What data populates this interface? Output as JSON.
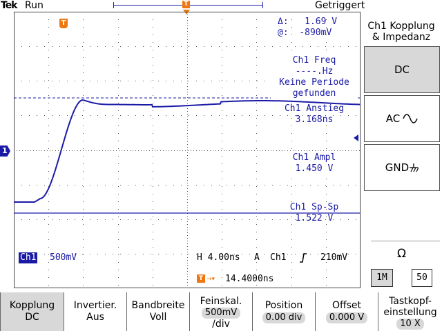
{
  "header": {
    "brand": "Tek",
    "run_state": "Run",
    "trigger_state": "Getriggert",
    "trigger_marker": "T",
    "trigger_level_marker": "T"
  },
  "cursor": {
    "delta_label": "Δ:",
    "delta_value": "1.69 V",
    "at_label": "@:",
    "at_value": "-890mV"
  },
  "measurements": [
    {
      "label": "Ch1 Freq",
      "value": "----.Hz",
      "extra": "Keine Periode",
      "extra2": "gefunden"
    },
    {
      "label": "Ch1 Anstieg",
      "value": "3.168ns"
    },
    {
      "label": "Ch1 Ampl",
      "value": "1.450 V"
    },
    {
      "label": "Ch1 Sp-Sp",
      "value": "1.522 V"
    }
  ],
  "channel": {
    "marker": "1",
    "badge": "Ch1",
    "scale": "500mV"
  },
  "timebase": {
    "horizontal": "H 4.00ns",
    "trigger_mode": "A",
    "trigger_source": "Ch1",
    "trigger_slope_icon": "rising-edge-icon",
    "trigger_level": "210mV",
    "trigger_position": "14.4000ns"
  },
  "side_menu": {
    "title_line1": "Ch1 Kopplung",
    "title_line2": "& Impedanz",
    "options": [
      {
        "label": "DC",
        "selected": true
      },
      {
        "label": "AC",
        "icon": "ac-sine-icon",
        "selected": false
      },
      {
        "label": "GND",
        "icon": "ground-icon",
        "selected": false
      }
    ],
    "impedance_symbol": "Ω",
    "impedance_options": [
      {
        "label": "1M",
        "selected": true
      },
      {
        "label": "50",
        "selected": false
      }
    ]
  },
  "bottom_menu": [
    {
      "line1": "Kopplung",
      "line2": "DC",
      "selected": true
    },
    {
      "line1": "Invertier.",
      "line2": "Aus",
      "selected": false
    },
    {
      "line1": "Bandbreite",
      "line2": "Voll",
      "selected": false
    },
    {
      "line1": "Feinskal.",
      "line2": "500mV",
      "line3": "/div",
      "selected": false
    },
    {
      "line1": "Position",
      "line2": "0.00 div",
      "selected": false
    },
    {
      "line1": "Offset",
      "line2": "0.000 V",
      "selected": false
    },
    {
      "line1": "Tastkopf-",
      "line2": "einstellung",
      "line3": "10 X",
      "selected": false
    }
  ],
  "colors": {
    "waveform": "#1a1aa6",
    "accent_orange": "#ee7711",
    "selected_gray": "#d8d8d8"
  }
}
